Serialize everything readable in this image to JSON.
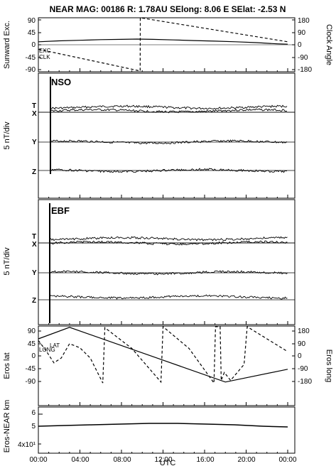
{
  "title": "NEAR MAG: 00186  R: 1.78AU  SElong:    8.06 E  SElat:   -2.53 N",
  "xlabel": "UTC",
  "x_ticks": [
    "00:00",
    "04:00",
    "08:00",
    "12:00",
    "16:00",
    "20:00",
    "00:00"
  ],
  "panels": {
    "p1": {
      "left_label": "Sunward Exc.",
      "right_label": "Clock Angle",
      "left_ticks": [
        "90",
        "45",
        "0",
        "-45",
        "-90"
      ],
      "right_ticks": [
        "180",
        "90",
        "0",
        "-90",
        "-180"
      ],
      "legend": [
        "EXC",
        "CLK"
      ]
    },
    "p2": {
      "name": "NSO",
      "ylabel": "5 nT/div",
      "components": [
        "T",
        "X",
        "Y",
        "Z"
      ]
    },
    "p3": {
      "name": "EBF",
      "ylabel": "5 nT/div",
      "components": [
        "T",
        "X",
        "Y",
        "Z"
      ]
    },
    "p4": {
      "left_label": "Eros lat",
      "right_label": "Eros long",
      "left_ticks": [
        "90",
        "45",
        "0",
        "-45",
        "-90"
      ],
      "right_ticks": [
        "180",
        "90",
        "0",
        "-90",
        "-180"
      ],
      "legend": [
        "LAT",
        "LONG"
      ]
    },
    "p5": {
      "left_label": "Eros-NEAR km",
      "ticks": [
        "6",
        "5",
        "4x10¹"
      ]
    }
  },
  "chart_data": [
    {
      "type": "line",
      "x_unit": "hours UTC",
      "xlim": [
        0,
        24
      ],
      "series": [
        {
          "name": "EXC",
          "axis": "left",
          "ylim": [
            -90,
            90
          ],
          "x": [
            0,
            2,
            4,
            6,
            8,
            9.5,
            11,
            13,
            15,
            17,
            19,
            21,
            22,
            23,
            24
          ],
          "y": [
            10,
            13,
            15,
            17,
            18,
            19,
            18,
            16,
            14,
            12,
            10,
            7,
            5,
            3,
            2
          ]
        },
        {
          "name": "CLK",
          "axis": "right",
          "ylim": [
            -180,
            180
          ],
          "x": [
            0,
            9.8,
            9.81,
            24
          ],
          "y": [
            -30,
            -175,
            180,
            20
          ]
        }
      ]
    },
    {
      "type": "line",
      "xlim": [
        0,
        24
      ],
      "series": [
        {
          "name": "LAT",
          "axis": "left",
          "ylim": [
            -90,
            90
          ],
          "x": [
            0,
            0.7,
            1.5,
            2.2,
            3,
            4,
            5,
            6.2,
            6.4,
            9,
            11.8,
            12,
            14.5,
            16.9,
            17.05,
            17.5,
            17.6,
            17.9,
            18.5,
            19.8,
            20.1,
            24
          ],
          "y": [
            45,
            15,
            -25,
            -10,
            35,
            22,
            -10,
            -88,
            85,
            20,
            -85,
            88,
            20,
            -88,
            88,
            88,
            -80,
            -55,
            -80,
            -30,
            88,
            10
          ]
        },
        {
          "name": "LONG",
          "axis": "right",
          "ylim": [
            -180,
            180
          ],
          "x": [
            0,
            3,
            18,
            24
          ],
          "y": [
            100,
            172,
            -170,
            -90
          ]
        }
      ]
    }
  ]
}
